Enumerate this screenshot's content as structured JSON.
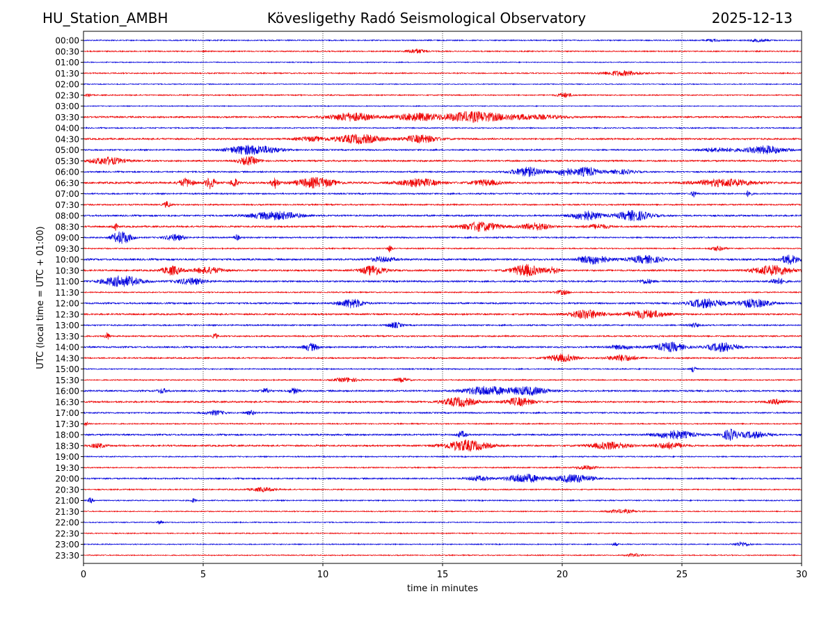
{
  "header": {
    "station": "HU_Station_AMBH",
    "observatory": "Kövesligethy Radó Seismological Observatory",
    "date": "2025-12-13"
  },
  "chart_data": {
    "type": "line",
    "title": "Kövesligethy Radó Seismological Observatory",
    "xlabel": "time in minutes",
    "ylabel": "UTC (local time = UTC + 01:00)",
    "xlim": [
      0,
      30
    ],
    "xticks": [
      0,
      5,
      10,
      15,
      20,
      25,
      30
    ],
    "grid": "vertical dotted at 5-minute ticks",
    "colors": {
      "even": "#0000dd",
      "odd": "#ee0000",
      "grid": "#000000"
    },
    "rows": [
      {
        "label": "00:00",
        "color": "#0000dd",
        "noise": 0.25,
        "events": [
          [
            26.3,
            0.3,
            0.5
          ],
          [
            28.2,
            0.4,
            0.6
          ]
        ]
      },
      {
        "label": "00:30",
        "color": "#ee0000",
        "noise": 0.25,
        "events": [
          [
            13.9,
            0.4,
            1.0
          ]
        ]
      },
      {
        "label": "01:00",
        "color": "#0000dd",
        "noise": 0.2,
        "events": []
      },
      {
        "label": "01:30",
        "color": "#ee0000",
        "noise": 0.25,
        "events": [
          [
            22.5,
            0.8,
            1.1
          ]
        ]
      },
      {
        "label": "02:00",
        "color": "#0000dd",
        "noise": 0.2,
        "events": []
      },
      {
        "label": "02:30",
        "color": "#ee0000",
        "noise": 0.25,
        "events": [
          [
            20.1,
            0.3,
            1.0
          ],
          [
            0.2,
            0.1,
            0.8
          ]
        ]
      },
      {
        "label": "03:00",
        "color": "#0000dd",
        "noise": 0.2,
        "events": []
      },
      {
        "label": "03:30",
        "color": "#ee0000",
        "noise": 0.35,
        "events": [
          [
            11.2,
            0.9,
            1.8
          ],
          [
            13.9,
            0.9,
            1.6
          ],
          [
            16.2,
            1.2,
            2.2
          ],
          [
            18.5,
            1.5,
            1.0
          ]
        ]
      },
      {
        "label": "04:00",
        "color": "#0000dd",
        "noise": 0.25,
        "events": []
      },
      {
        "label": "04:30",
        "color": "#ee0000",
        "noise": 0.35,
        "events": [
          [
            11.5,
            1.0,
            2.0
          ],
          [
            14.1,
            0.7,
            1.7
          ],
          [
            9.5,
            0.6,
            0.9
          ]
        ]
      },
      {
        "label": "05:00",
        "color": "#0000dd",
        "noise": 0.3,
        "events": [
          [
            6.8,
            0.8,
            2.0
          ],
          [
            7.8,
            0.6,
            1.0
          ],
          [
            28.5,
            0.8,
            1.8
          ],
          [
            26.5,
            0.8,
            0.9
          ]
        ]
      },
      {
        "label": "05:30",
        "color": "#ee0000",
        "noise": 0.35,
        "events": [
          [
            1.0,
            0.7,
            1.6
          ],
          [
            6.9,
            0.4,
            1.8
          ]
        ]
      },
      {
        "label": "06:00",
        "color": "#0000dd",
        "noise": 0.3,
        "events": [
          [
            18.6,
            0.7,
            2.0
          ],
          [
            20.1,
            0.3,
            1.8
          ],
          [
            21.0,
            0.5,
            2.0
          ],
          [
            22.5,
            0.6,
            0.9
          ]
        ]
      },
      {
        "label": "06:30",
        "color": "#ee0000",
        "noise": 0.4,
        "events": [
          [
            4.3,
            0.3,
            1.8
          ],
          [
            5.3,
            0.2,
            2.6
          ],
          [
            6.3,
            0.15,
            2.0
          ],
          [
            8.0,
            0.15,
            2.4
          ],
          [
            9.7,
            0.8,
            2.2
          ],
          [
            14.0,
            0.8,
            1.8
          ],
          [
            16.8,
            0.6,
            1.2
          ],
          [
            26.8,
            1.2,
            1.6
          ]
        ]
      },
      {
        "label": "07:00",
        "color": "#0000dd",
        "noise": 0.3,
        "events": [
          [
            25.5,
            0.1,
            1.6
          ],
          [
            27.8,
            0.1,
            1.8
          ]
        ]
      },
      {
        "label": "07:30",
        "color": "#ee0000",
        "noise": 0.3,
        "events": [
          [
            3.5,
            0.15,
            1.4
          ]
        ]
      },
      {
        "label": "08:00",
        "color": "#0000dd",
        "noise": 0.35,
        "events": [
          [
            8.0,
            1.0,
            1.8
          ],
          [
            21.0,
            0.6,
            2.0
          ],
          [
            23.0,
            0.7,
            2.2
          ]
        ]
      },
      {
        "label": "08:30",
        "color": "#ee0000",
        "noise": 0.35,
        "events": [
          [
            1.3,
            0.1,
            1.8
          ],
          [
            16.6,
            0.8,
            2.0
          ],
          [
            18.9,
            0.6,
            1.6
          ],
          [
            21.5,
            0.5,
            1.0
          ]
        ]
      },
      {
        "label": "09:00",
        "color": "#0000dd",
        "noise": 0.3,
        "events": [
          [
            1.6,
            0.4,
            2.8
          ],
          [
            3.8,
            0.4,
            1.4
          ],
          [
            6.4,
            0.1,
            1.4
          ]
        ]
      },
      {
        "label": "09:30",
        "color": "#ee0000",
        "noise": 0.25,
        "events": [
          [
            12.8,
            0.1,
            1.6
          ],
          [
            26.5,
            0.3,
            1.0
          ]
        ]
      },
      {
        "label": "10:00",
        "color": "#0000dd",
        "noise": 0.4,
        "events": [
          [
            21.3,
            0.6,
            2.0
          ],
          [
            23.5,
            0.7,
            1.6
          ],
          [
            29.5,
            0.4,
            2.0
          ],
          [
            12.5,
            0.5,
            1.0
          ]
        ]
      },
      {
        "label": "10:30",
        "color": "#ee0000",
        "noise": 0.35,
        "events": [
          [
            3.7,
            0.4,
            2.0
          ],
          [
            5.2,
            0.6,
            1.4
          ],
          [
            12.1,
            0.5,
            2.2
          ],
          [
            18.5,
            0.6,
            2.6
          ],
          [
            19.6,
            0.3,
            1.4
          ],
          [
            28.8,
            0.8,
            2.2
          ]
        ]
      },
      {
        "label": "11:00",
        "color": "#0000dd",
        "noise": 0.35,
        "events": [
          [
            1.6,
            0.8,
            2.4
          ],
          [
            4.5,
            0.6,
            1.4
          ],
          [
            23.5,
            0.3,
            1.0
          ],
          [
            29.0,
            0.3,
            1.4
          ]
        ]
      },
      {
        "label": "11:30",
        "color": "#ee0000",
        "noise": 0.25,
        "events": [
          [
            20.0,
            0.3,
            1.0
          ]
        ]
      },
      {
        "label": "12:00",
        "color": "#0000dd",
        "noise": 0.35,
        "events": [
          [
            11.2,
            0.5,
            2.0
          ],
          [
            26.0,
            0.7,
            2.0
          ],
          [
            28.0,
            0.7,
            1.8
          ]
        ]
      },
      {
        "label": "12:30",
        "color": "#ee0000",
        "noise": 0.35,
        "events": [
          [
            21.0,
            0.7,
            2.0
          ],
          [
            23.5,
            0.8,
            1.8
          ]
        ]
      },
      {
        "label": "13:00",
        "color": "#0000dd",
        "noise": 0.3,
        "events": [
          [
            13.0,
            0.3,
            1.2
          ],
          [
            25.5,
            0.2,
            1.0
          ]
        ]
      },
      {
        "label": "13:30",
        "color": "#ee0000",
        "noise": 0.3,
        "events": [
          [
            1.0,
            0.1,
            1.6
          ],
          [
            5.5,
            0.1,
            1.2
          ]
        ]
      },
      {
        "label": "14:00",
        "color": "#0000dd",
        "noise": 0.35,
        "events": [
          [
            9.5,
            0.3,
            1.6
          ],
          [
            24.5,
            0.6,
            2.0
          ],
          [
            26.7,
            0.6,
            2.0
          ],
          [
            22.5,
            0.6,
            0.9
          ]
        ]
      },
      {
        "label": "14:30",
        "color": "#ee0000",
        "noise": 0.3,
        "events": [
          [
            20.0,
            0.6,
            1.6
          ],
          [
            22.5,
            0.6,
            1.4
          ]
        ]
      },
      {
        "label": "15:00",
        "color": "#0000dd",
        "noise": 0.25,
        "events": [
          [
            25.5,
            0.1,
            1.8
          ]
        ]
      },
      {
        "label": "15:30",
        "color": "#ee0000",
        "noise": 0.25,
        "events": [
          [
            11.0,
            0.5,
            1.0
          ],
          [
            13.3,
            0.3,
            0.9
          ]
        ]
      },
      {
        "label": "16:00",
        "color": "#0000dd",
        "noise": 0.35,
        "events": [
          [
            16.8,
            0.9,
            2.0
          ],
          [
            18.6,
            0.8,
            1.8
          ],
          [
            8.8,
            0.2,
            1.2
          ],
          [
            7.6,
            0.2,
            1.0
          ],
          [
            3.3,
            0.2,
            1.0
          ]
        ]
      },
      {
        "label": "16:30",
        "color": "#ee0000",
        "noise": 0.35,
        "events": [
          [
            15.7,
            0.7,
            2.0
          ],
          [
            18.2,
            0.6,
            1.8
          ],
          [
            29.0,
            0.4,
            1.0
          ]
        ]
      },
      {
        "label": "17:00",
        "color": "#0000dd",
        "noise": 0.3,
        "events": [
          [
            5.5,
            0.4,
            1.0
          ],
          [
            7.0,
            0.2,
            0.9
          ]
        ]
      },
      {
        "label": "17:30",
        "color": "#ee0000",
        "noise": 0.25,
        "events": [
          [
            0.1,
            0.1,
            1.0
          ]
        ]
      },
      {
        "label": "18:00",
        "color": "#0000dd",
        "noise": 0.35,
        "events": [
          [
            15.8,
            0.2,
            1.4
          ],
          [
            24.7,
            0.8,
            1.8
          ],
          [
            27.0,
            0.3,
            2.4
          ],
          [
            28.0,
            0.6,
            1.4
          ]
        ]
      },
      {
        "label": "18:30",
        "color": "#ee0000",
        "noise": 0.35,
        "events": [
          [
            16.0,
            0.9,
            2.4
          ],
          [
            22.0,
            0.8,
            1.6
          ],
          [
            24.5,
            0.6,
            1.4
          ],
          [
            0.6,
            0.3,
            1.0
          ]
        ]
      },
      {
        "label": "19:00",
        "color": "#0000dd",
        "noise": 0.25,
        "events": []
      },
      {
        "label": "19:30",
        "color": "#ee0000",
        "noise": 0.25,
        "events": [
          [
            21.0,
            0.4,
            0.9
          ]
        ]
      },
      {
        "label": "20:00",
        "color": "#0000dd",
        "noise": 0.3,
        "events": [
          [
            18.4,
            0.7,
            2.0
          ],
          [
            20.5,
            0.8,
            1.8
          ],
          [
            16.5,
            0.5,
            1.0
          ]
        ]
      },
      {
        "label": "20:30",
        "color": "#ee0000",
        "noise": 0.25,
        "events": [
          [
            7.5,
            0.5,
            0.9
          ]
        ]
      },
      {
        "label": "21:00",
        "color": "#0000dd",
        "noise": 0.25,
        "events": [
          [
            0.3,
            0.1,
            1.2
          ],
          [
            4.6,
            0.1,
            0.9
          ]
        ]
      },
      {
        "label": "21:30",
        "color": "#ee0000",
        "noise": 0.22,
        "events": [
          [
            22.5,
            0.6,
            0.8
          ]
        ]
      },
      {
        "label": "22:00",
        "color": "#0000dd",
        "noise": 0.22,
        "events": [
          [
            3.2,
            0.1,
            0.9
          ]
        ]
      },
      {
        "label": "22:30",
        "color": "#ee0000",
        "noise": 0.22,
        "events": []
      },
      {
        "label": "23:00",
        "color": "#0000dd",
        "noise": 0.22,
        "events": [
          [
            27.5,
            0.3,
            1.0
          ],
          [
            22.2,
            0.1,
            0.8
          ]
        ]
      },
      {
        "label": "23:30",
        "color": "#ee0000",
        "noise": 0.22,
        "events": [
          [
            23.0,
            0.3,
            0.7
          ]
        ]
      }
    ]
  }
}
